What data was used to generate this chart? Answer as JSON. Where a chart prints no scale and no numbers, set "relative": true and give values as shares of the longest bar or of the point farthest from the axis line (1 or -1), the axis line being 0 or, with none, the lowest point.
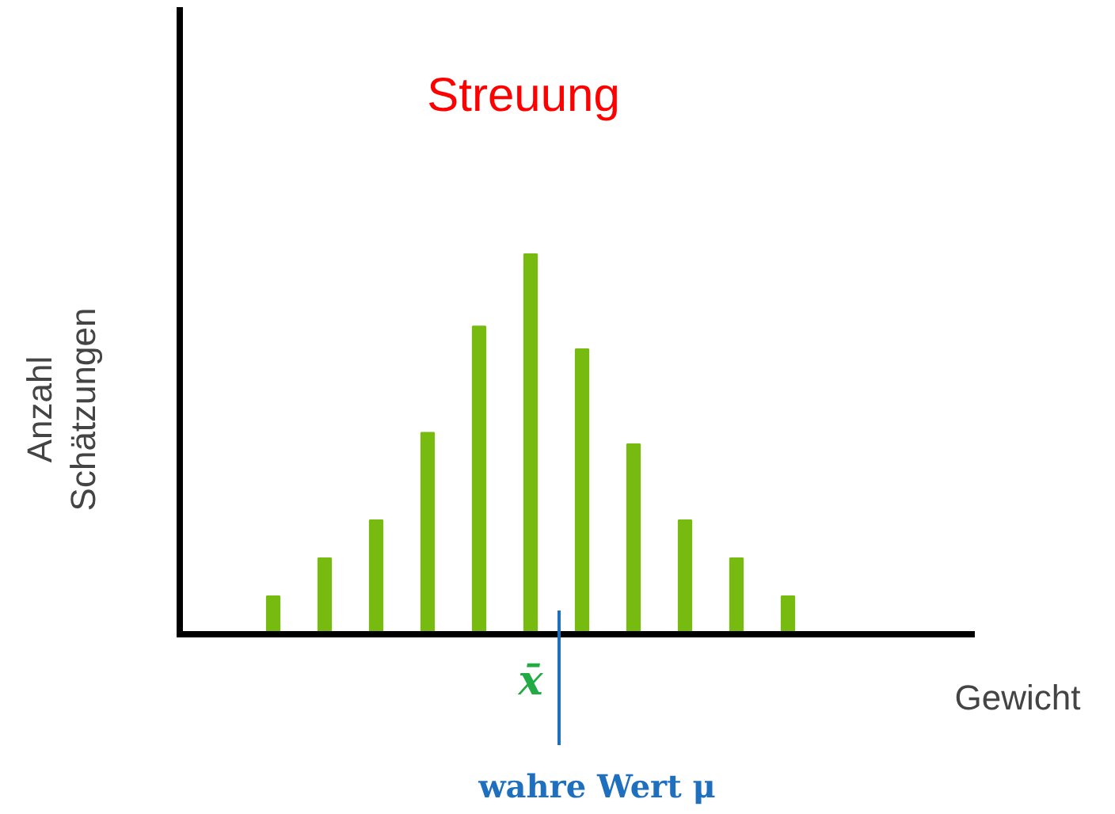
{
  "chart_data": {
    "type": "bar",
    "relative": true,
    "categories": [
      null,
      null,
      null,
      null,
      null,
      null,
      null,
      null,
      null,
      null,
      null
    ],
    "values": [
      0.1,
      0.2,
      0.3,
      0.53,
      0.81,
      1,
      0.75,
      0.5,
      0.3,
      0.2,
      0.1
    ],
    "color": "#77bb11",
    "xlabel": "Gewicht",
    "ylabel": "Anzahl Schätzungen",
    "annotations": [
      "Streuung",
      "x̄",
      "wahre Wert μ"
    ]
  }
}
